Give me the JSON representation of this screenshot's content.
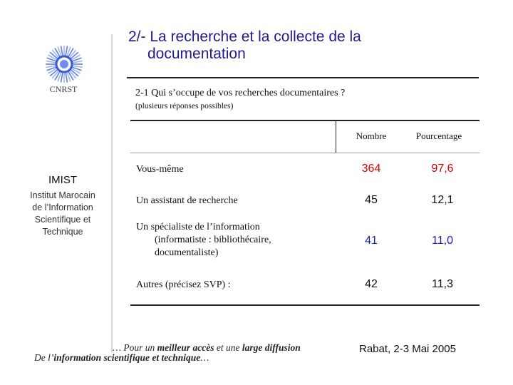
{
  "title": {
    "line1": "2/- La recherche et la collecte de la",
    "line2": "documentation"
  },
  "sidebar": {
    "logo_label": "CNRST",
    "acronym": "IMIST",
    "institute_lines": [
      "Institut Marocain",
      "de l’Information",
      "Scientifique et",
      "Technique"
    ]
  },
  "question": {
    "text": "2-1  Qui s’occupe de  vos recherches documentaires ?",
    "note": "(plusieurs réponses possibles)"
  },
  "table": {
    "headers": {
      "count": "Nombre",
      "percent": "Pourcentage"
    },
    "rows": [
      {
        "label_lines": [
          "Vous-même"
        ],
        "count": "364",
        "percent": "97,6",
        "color": "#d40000"
      },
      {
        "label_lines": [
          "Un assistant de recherche"
        ],
        "count": "45",
        "percent": "12,1",
        "color": "#111111"
      },
      {
        "label_lines": [
          "Un spécialiste de l’information",
          "(informatiste : bibliothécaire,",
          "documentaliste)"
        ],
        "count": "41",
        "percent": "11,0",
        "color": "#1a1aa6"
      },
      {
        "label_lines": [
          "Autres (précisez SVP) :"
        ],
        "count": "42",
        "percent": "11,3",
        "color": "#111111"
      }
    ]
  },
  "footer": {
    "line1_a": "… Pour un ",
    "line1_b": "meilleur accès",
    "line1_c": " et une ",
    "line1_d": "large diffusion",
    "line2_a": "De l’",
    "line2_b": "information scientifique et technique",
    "line2_c": "…",
    "date_place": "Rabat, 2-3 Mai 2005"
  }
}
